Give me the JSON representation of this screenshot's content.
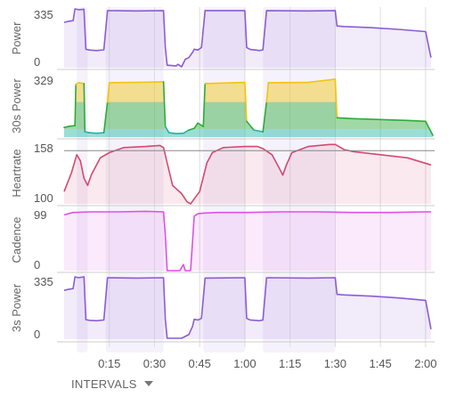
{
  "colors": {
    "power": "#8a5cd6",
    "heartrate": "#d24a72",
    "cadence": "#e04fe6",
    "zone_yellow": "#f1c40f",
    "zone_green": "#2faa3a",
    "zone_teal": "#1fb5a5",
    "interval_band": "#ece8f7",
    "grid": "#cccccc",
    "hr_reference": "#888888"
  },
  "controls": {
    "intervals_label": "INTERVALS",
    "intervals_icon": "caret-down-icon"
  },
  "chart_data": {
    "type": "line",
    "x_unit": "minutes",
    "xlim": [
      0,
      2.05
    ],
    "x_ticks": [
      {
        "value": 0.25,
        "label": "0:15"
      },
      {
        "value": 0.5,
        "label": "0:30"
      },
      {
        "value": 0.75,
        "label": "0:45"
      },
      {
        "value": 1.0,
        "label": "1:00"
      },
      {
        "value": 1.25,
        "label": "1:15"
      },
      {
        "value": 1.5,
        "label": "1:30"
      },
      {
        "value": 1.75,
        "label": "1:45"
      },
      {
        "value": 2.0,
        "label": "2:00"
      }
    ],
    "intervals": [
      [
        0.07,
        0.13
      ],
      [
        0.23,
        0.55
      ],
      [
        0.77,
        1.0
      ],
      [
        1.1,
        1.5
      ]
    ],
    "panels": [
      {
        "id": "power",
        "ylabel": "Power",
        "ylim": [
          0,
          350
        ],
        "y_ticks": [
          0,
          335
        ],
        "series": [
          {
            "x": [
              0,
              0.02,
              0.05,
              0.06,
              0.08,
              0.11,
              0.12,
              0.14,
              0.18,
              0.22,
              0.24,
              0.4,
              0.55,
              0.56,
              0.57,
              0.6,
              0.62,
              0.63,
              0.65,
              0.67,
              0.69,
              0.71,
              0.72,
              0.74,
              0.76,
              0.78,
              1.0,
              1.01,
              1.03,
              1.06,
              1.08,
              1.1,
              1.12,
              1.35,
              1.5,
              1.51,
              1.55,
              1.7,
              1.85,
              2.0,
              2.03
            ],
            "y": [
              270,
              275,
              280,
              350,
              345,
              348,
              110,
              105,
              102,
              106,
              340,
              338,
              340,
              120,
              15,
              12,
              10,
              20,
              5,
              50,
              60,
              90,
              110,
              105,
              120,
              340,
              340,
              120,
              108,
              105,
              102,
              106,
              340,
              338,
              340,
              248,
              245,
              238,
              228,
              215,
              60
            ]
          }
        ]
      },
      {
        "id": "power30",
        "ylabel": "30s Power",
        "ylim": [
          0,
          340
        ],
        "y_ticks": [
          329
        ],
        "zones": [
          {
            "from": 0,
            "to": 45,
            "color_key": "zone_teal"
          },
          {
            "from": 45,
            "to": 200,
            "color_key": "zone_green"
          },
          {
            "from": 200,
            "to": 400,
            "color_key": "zone_yellow"
          }
        ],
        "series": [
          {
            "x": [
              0,
              0.03,
              0.06,
              0.065,
              0.08,
              0.11,
              0.115,
              0.14,
              0.18,
              0.22,
              0.24,
              0.25,
              0.4,
              0.55,
              0.56,
              0.58,
              0.62,
              0.66,
              0.69,
              0.72,
              0.74,
              0.77,
              0.78,
              1.0,
              1.01,
              1.05,
              1.1,
              1.12,
              1.13,
              1.35,
              1.5,
              1.51,
              1.6,
              1.75,
              1.9,
              2.0,
              2.04
            ],
            "y": [
              55,
              62,
              65,
              300,
              310,
              305,
              30,
              25,
              22,
              25,
              200,
              310,
              312,
              315,
              60,
              25,
              20,
              22,
              40,
              50,
              80,
              60,
              305,
              312,
              90,
              40,
              30,
              200,
              310,
              312,
              330,
              110,
              105,
              100,
              95,
              90,
              10
            ]
          }
        ]
      },
      {
        "id": "heartrate",
        "ylabel": "Heartrate",
        "ylim": [
          100,
          160
        ],
        "y_ticks": [
          100,
          158
        ],
        "reference_value": 152,
        "series": [
          {
            "x": [
              0,
              0.04,
              0.07,
              0.09,
              0.11,
              0.13,
              0.15,
              0.2,
              0.25,
              0.33,
              0.45,
              0.53,
              0.55,
              0.57,
              0.6,
              0.65,
              0.68,
              0.7,
              0.72,
              0.75,
              0.79,
              0.82,
              0.88,
              1.0,
              1.07,
              1.1,
              1.15,
              1.19,
              1.21,
              1.23,
              1.26,
              1.35,
              1.47,
              1.5,
              1.52,
              1.55,
              1.6,
              1.75,
              1.9,
              2.03
            ],
            "y": [
              112,
              130,
              148,
              142,
              125,
              118,
              128,
              145,
              150,
              155,
              156,
              157,
              155,
              140,
              118,
              110,
              102,
              97,
              105,
              112,
              140,
              150,
              155,
              156,
              156,
              154,
              148,
              135,
              128,
              138,
              150,
              156,
              158,
              158,
              156,
              153,
              151,
              148,
              145,
              138
            ]
          }
        ]
      },
      {
        "id": "cadence",
        "ylabel": "Cadence",
        "ylim": [
          0,
          100
        ],
        "y_ticks": [
          0,
          99
        ],
        "series": [
          {
            "x": [
              0,
              0.05,
              0.15,
              0.3,
              0.45,
              0.55,
              0.56,
              0.57,
              0.64,
              0.66,
              0.67,
              0.68,
              0.7,
              0.72,
              0.74,
              0.77,
              0.85,
              1.0,
              1.2,
              1.4,
              1.6,
              1.8,
              2.0,
              2.03
            ],
            "y": [
              92,
              96,
              97,
              97,
              98,
              97,
              60,
              0,
              0,
              10,
              0,
              0,
              0,
              90,
              94,
              95,
              96,
              96,
              97,
              97,
              96,
              96,
              97,
              97
            ]
          }
        ]
      },
      {
        "id": "power3s",
        "ylabel": "3s Power",
        "ylim": [
          0,
          350
        ],
        "y_ticks": [
          0,
          335
        ],
        "series": [
          {
            "x": [
              0,
              0.02,
              0.05,
              0.06,
              0.08,
              0.11,
              0.12,
              0.14,
              0.18,
              0.22,
              0.24,
              0.4,
              0.55,
              0.56,
              0.57,
              0.6,
              0.65,
              0.69,
              0.71,
              0.72,
              0.74,
              0.76,
              0.78,
              1.0,
              1.01,
              1.03,
              1.06,
              1.08,
              1.1,
              1.12,
              1.35,
              1.5,
              1.51,
              1.55,
              1.7,
              1.85,
              2.0,
              2.03
            ],
            "y": [
              270,
              275,
              280,
              345,
              340,
              345,
              108,
              104,
              102,
              106,
              340,
              338,
              340,
              110,
              5,
              5,
              5,
              25,
              70,
              110,
              106,
              115,
              338,
              340,
              115,
              106,
              104,
              102,
              106,
              340,
              338,
              340,
              248,
              245,
              238,
              228,
              215,
              55
            ]
          }
        ]
      }
    ]
  }
}
